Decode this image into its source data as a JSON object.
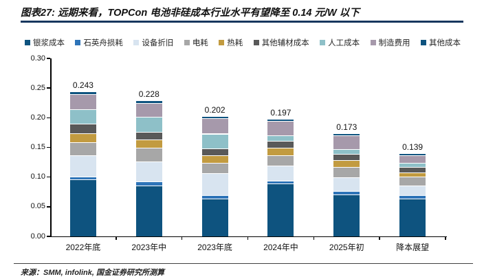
{
  "header": {
    "title": "图表27: 远期来看，TOPCon 电池非硅成本行业水平有望降至 0.14 元/W 以下"
  },
  "footer": {
    "source": "来源：SMM, infolink, 国金证券研究所测算"
  },
  "colors": {
    "title_rule": "#17375E",
    "axis": "#000000",
    "text": "#111111"
  },
  "chart_data": {
    "type": "bar",
    "stacked": true,
    "grid": false,
    "legend_position": "top",
    "ylim": [
      0,
      0.3
    ],
    "y_ticks": [
      "0.00",
      "0.05",
      "0.10",
      "0.15",
      "0.20",
      "0.25",
      "0.30"
    ],
    "categories": [
      "2022年底",
      "2023年中",
      "2023年底",
      "2024年中",
      "2025年初",
      "降本展望"
    ],
    "totals": [
      0.243,
      0.228,
      0.202,
      0.197,
      0.173,
      0.139
    ],
    "total_labels": [
      "0.243",
      "0.228",
      "0.202",
      "0.197",
      "0.173",
      "0.139"
    ],
    "series": [
      {
        "name": "银浆成本",
        "color": "#0E537F",
        "values": [
          0.095,
          0.085,
          0.063,
          0.088,
          0.07,
          0.062
        ]
      },
      {
        "name": "石英舟损耗",
        "color": "#2E74B8",
        "values": [
          0.005,
          0.006,
          0.005,
          0.005,
          0.005,
          0.006
        ]
      },
      {
        "name": "设备折旧",
        "color": "#D8E4F0",
        "values": [
          0.036,
          0.034,
          0.037,
          0.025,
          0.024,
          0.017
        ]
      },
      {
        "name": "电耗",
        "color": "#A7A7A7",
        "values": [
          0.021,
          0.023,
          0.018,
          0.017,
          0.017,
          0.015
        ]
      },
      {
        "name": "热耗",
        "color": "#C29B40",
        "values": [
          0.016,
          0.014,
          0.012,
          0.013,
          0.011,
          0.006
        ]
      },
      {
        "name": "其他辅材成本",
        "color": "#595959",
        "values": [
          0.016,
          0.013,
          0.012,
          0.012,
          0.011,
          0.01
        ]
      },
      {
        "name": "人工成本",
        "color": "#8EC0C8",
        "values": [
          0.024,
          0.025,
          0.025,
          0.009,
          0.008,
          0.007
        ]
      },
      {
        "name": "制造费用",
        "color": "#A699AB",
        "values": [
          0.026,
          0.024,
          0.026,
          0.024,
          0.023,
          0.012
        ]
      },
      {
        "name": "其他成本",
        "color": "#0E537F",
        "values": [
          0.004,
          0.004,
          0.004,
          0.004,
          0.004,
          0.004
        ]
      }
    ]
  }
}
